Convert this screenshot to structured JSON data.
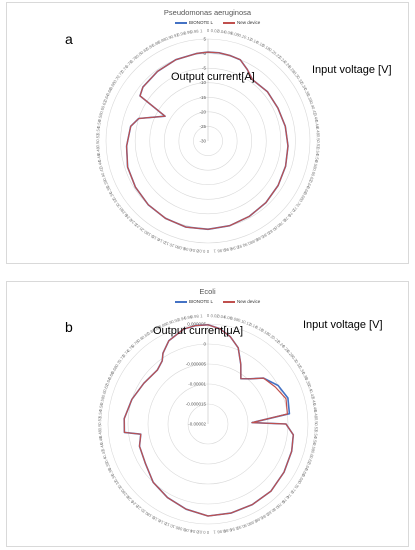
{
  "chart_data": [
    {
      "type": "radar",
      "panel_letter": "a",
      "title": "Pseudomonas aeruginosa",
      "radial_axis_annotation": "Output current[A]",
      "angular_axis_annotation": "Input voltage [V]",
      "radial_ticks": [
        "5",
        "0",
        "-5",
        "-10",
        "-15",
        "-20",
        "-25",
        "-30"
      ],
      "rlim": [
        -30,
        5
      ],
      "grid": true,
      "legend_position": "top-right",
      "angular_tick_labels": [
        "0",
        "0.02",
        "0.04",
        "0.06",
        "0.08",
        "0.1",
        "0.12",
        "0.14",
        "0.16",
        "0.18",
        "0.2",
        "0.22",
        "0.24",
        "0.26",
        "0.28",
        "0.3",
        "0.32",
        "0.34",
        "0.36",
        "0.38",
        "0.4",
        "0.42",
        "0.44",
        "0.46",
        "0.48",
        "0.5",
        "0.52",
        "0.54",
        "0.56",
        "0.58",
        "0.6",
        "0.62",
        "0.64",
        "0.66",
        "0.68",
        "0.7",
        "0.72",
        "0.74",
        "0.76",
        "0.78",
        "0.8",
        "0.82",
        "0.84",
        "0.86",
        "0.88",
        "0.9",
        "0.92",
        "0.94",
        "0.96",
        "0.98",
        "1"
      ],
      "angular_positions": [
        0,
        0.02,
        0.04,
        0.06,
        0.08,
        0.1,
        0.14,
        0.18,
        0.22,
        0.26,
        0.3,
        0.34,
        0.38,
        0.42,
        0.46,
        0.5,
        0.54,
        0.58,
        0.62,
        0.66,
        0.7,
        0.74,
        0.78,
        0.8,
        0.8333,
        0.8433,
        0.86,
        0.9,
        0.94,
        0.98
      ],
      "series": [
        {
          "name": "BIONOTE L",
          "color": "#4472c4",
          "values": [
            0.5,
            0.5,
            0.3,
            0.0,
            -2.0,
            -4.0,
            -3.5,
            -3.5,
            -3.0,
            -2.5,
            -2.0,
            -1.5,
            -1.0,
            -0.5,
            0.0,
            0.3,
            0.5,
            0.3,
            0.0,
            -0.5,
            -1.0,
            -2.0,
            -3.0,
            -5.0,
            -13.0,
            -2.0,
            -1.0,
            -0.5,
            0.0,
            0.3
          ]
        },
        {
          "name": "New device",
          "color": "#c0504d",
          "values": [
            0.5,
            0.5,
            0.3,
            0.0,
            -2.0,
            -4.0,
            -3.5,
            -3.5,
            -3.0,
            -2.5,
            -2.0,
            -1.5,
            -1.0,
            -0.5,
            0.0,
            0.3,
            0.5,
            0.3,
            0.0,
            -0.5,
            -1.0,
            -2.0,
            -3.0,
            -5.0,
            -13.0,
            -2.0,
            -1.0,
            -0.5,
            0.0,
            0.3
          ]
        }
      ]
    },
    {
      "type": "radar",
      "panel_letter": "b",
      "title": "Ecoli",
      "radial_axis_annotation": "Output current[μA]",
      "angular_axis_annotation": "Input voltage [V]",
      "radial_ticks": [
        "0.000005",
        "0",
        "-0.000005",
        "-0.00001",
        "-0.000015",
        "-0.00002"
      ],
      "rlim": [
        -2e-05,
        5e-06
      ],
      "grid": true,
      "legend_position": "top-right",
      "angular_tick_labels": [
        "0",
        "0.02",
        "0.04",
        "0.06",
        "0.08",
        "0.1",
        "0.12",
        "0.14",
        "0.16",
        "0.18",
        "0.2",
        "0.22",
        "0.24",
        "0.26",
        "0.28",
        "0.3",
        "0.32",
        "0.34",
        "0.36",
        "0.38",
        "0.4",
        "0.42",
        "0.44",
        "0.46",
        "0.48",
        "0.5",
        "0.52",
        "0.54",
        "0.56",
        "0.58",
        "0.6",
        "0.62",
        "0.64",
        "0.66",
        "0.68",
        "0.7",
        "0.72",
        "0.74",
        "0.76",
        "0.78",
        "0.8",
        "0.82",
        "0.84",
        "0.86",
        "0.88",
        "0.9",
        "0.92",
        "0.94",
        "0.96",
        "0.98",
        "1"
      ],
      "angular_positions": [
        0,
        0.02,
        0.04,
        0.06,
        0.08,
        0.1,
        0.12,
        0.14,
        0.17,
        0.2,
        0.23,
        0.245,
        0.25,
        0.27,
        0.3,
        0.34,
        0.38,
        0.42,
        0.46,
        0.5,
        0.54,
        0.58,
        0.62,
        0.66,
        0.7,
        0.726,
        0.734,
        0.76,
        0.8,
        0.84,
        0.88,
        0.9,
        0.91,
        0.93,
        0.96,
        0.98
      ],
      "series": [
        {
          "name": "BIONOTE L",
          "color": "#4472c4",
          "values": [
            4.8e-06,
            4e-06,
            2.5e-06,
            5e-07,
            -3e-06,
            -6e-06,
            -4.5e-06,
            -2e-06,
            0.0,
            1e-06,
            5e-07,
            -9e-06,
            -5e-07,
            1.5e-06,
            2e-06,
            2.5e-06,
            3e-06,
            3e-06,
            3e-06,
            3e-06,
            2e-06,
            1e-06,
            0.0,
            -1.5e-06,
            -2e-06,
            -3e-06,
            1e-06,
            1e-06,
            0.0,
            -1e-06,
            -1.5e-06,
            -5e-07,
            1e-06,
            3e-06,
            4.5e-06,
            4.8e-06
          ]
        },
        {
          "name": "New device",
          "color": "#c0504d",
          "values": [
            4.8e-06,
            4e-06,
            2.5e-06,
            5e-07,
            -3e-06,
            -6e-06,
            -4.5e-06,
            -2e-06,
            -8e-07,
            5e-07,
            0.0,
            -9e-06,
            -5e-07,
            1.5e-06,
            2e-06,
            2.5e-06,
            3e-06,
            3e-06,
            3e-06,
            3e-06,
            2e-06,
            1e-06,
            0.0,
            -1.5e-06,
            -2e-06,
            -3e-06,
            1e-06,
            1e-06,
            0.0,
            -1e-06,
            -1.5e-06,
            -5e-07,
            1e-06,
            3e-06,
            4.5e-06,
            4.8e-06
          ]
        }
      ]
    }
  ]
}
